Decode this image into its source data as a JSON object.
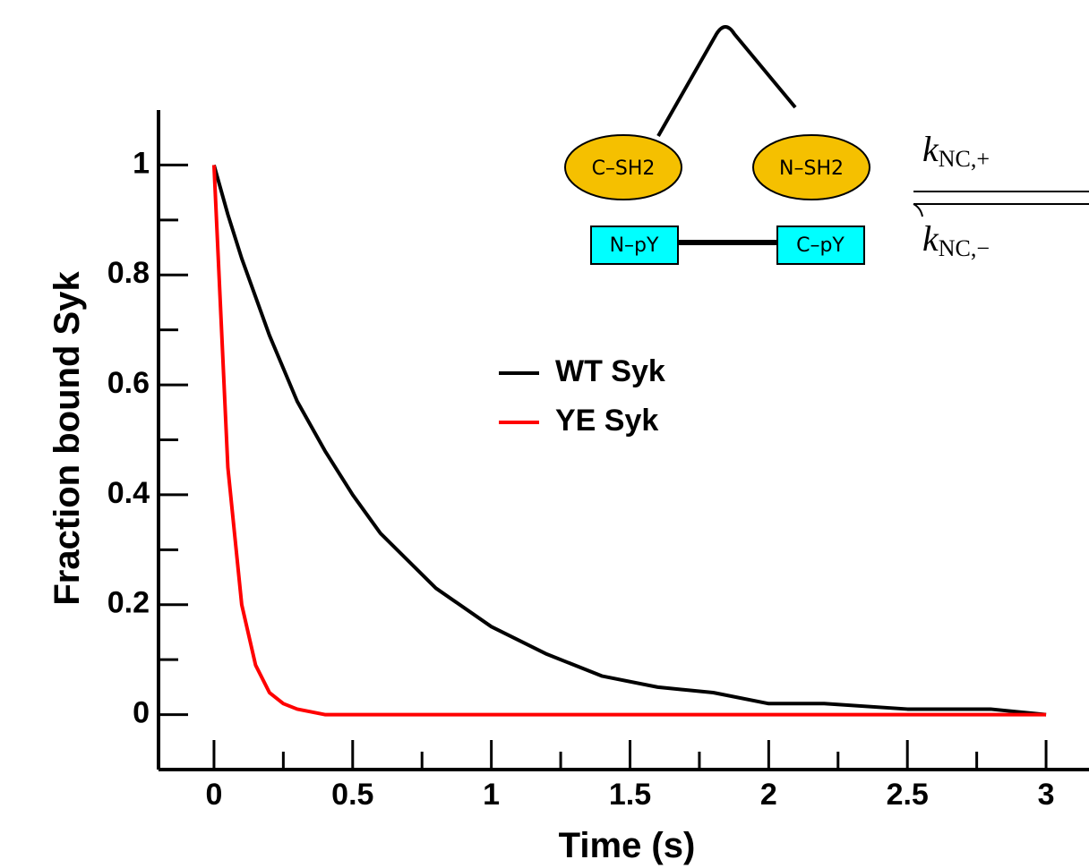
{
  "chart_data": {
    "type": "line",
    "xlabel": "Time (s)",
    "ylabel": "Fraction bound Syk",
    "x": [
      0,
      0.05,
      0.1,
      0.15,
      0.2,
      0.25,
      0.3,
      0.4,
      0.5,
      0.6,
      0.8,
      1,
      1.2,
      1.4,
      1.6,
      1.8,
      2,
      2.2,
      2.5,
      2.8,
      3
    ],
    "series": [
      {
        "name": "WT Syk",
        "color": "#000000",
        "values": [
          1,
          0.91,
          0.83,
          0.76,
          0.69,
          0.63,
          0.57,
          0.48,
          0.4,
          0.33,
          0.23,
          0.16,
          0.11,
          0.07,
          0.05,
          0.04,
          0.02,
          0.02,
          0.01,
          0.01,
          0
        ]
      },
      {
        "name": "YE Syk",
        "color": "#ff0000",
        "values": [
          1,
          0.45,
          0.2,
          0.09,
          0.04,
          0.02,
          0.01,
          0,
          0,
          0,
          0,
          0,
          0,
          0,
          0,
          0,
          0,
          0,
          0,
          0,
          0
        ]
      }
    ],
    "xlim": [
      -0.2,
      3.2
    ],
    "ylim": [
      -0.1,
      1.1
    ],
    "xticks": [
      0,
      0.5,
      1,
      1.5,
      2,
      2.5,
      3
    ],
    "yticks": [
      0,
      0.2,
      0.4,
      0.6,
      0.8,
      1
    ],
    "xminorticks": [
      0.25,
      0.75,
      1.25,
      1.75,
      2.25,
      2.75
    ],
    "yminorticks": [
      0.1,
      0.3,
      0.5,
      0.7,
      0.9
    ],
    "legend": "center"
  },
  "diagram": {
    "domains": [
      "C–SH2",
      "N–SH2"
    ],
    "motifs": [
      "N–pY",
      "C–pY"
    ],
    "rates": [
      {
        "symbol": "k",
        "subscript": "NC,+"
      },
      {
        "symbol": "k",
        "subscript": "NC,−"
      }
    ]
  }
}
